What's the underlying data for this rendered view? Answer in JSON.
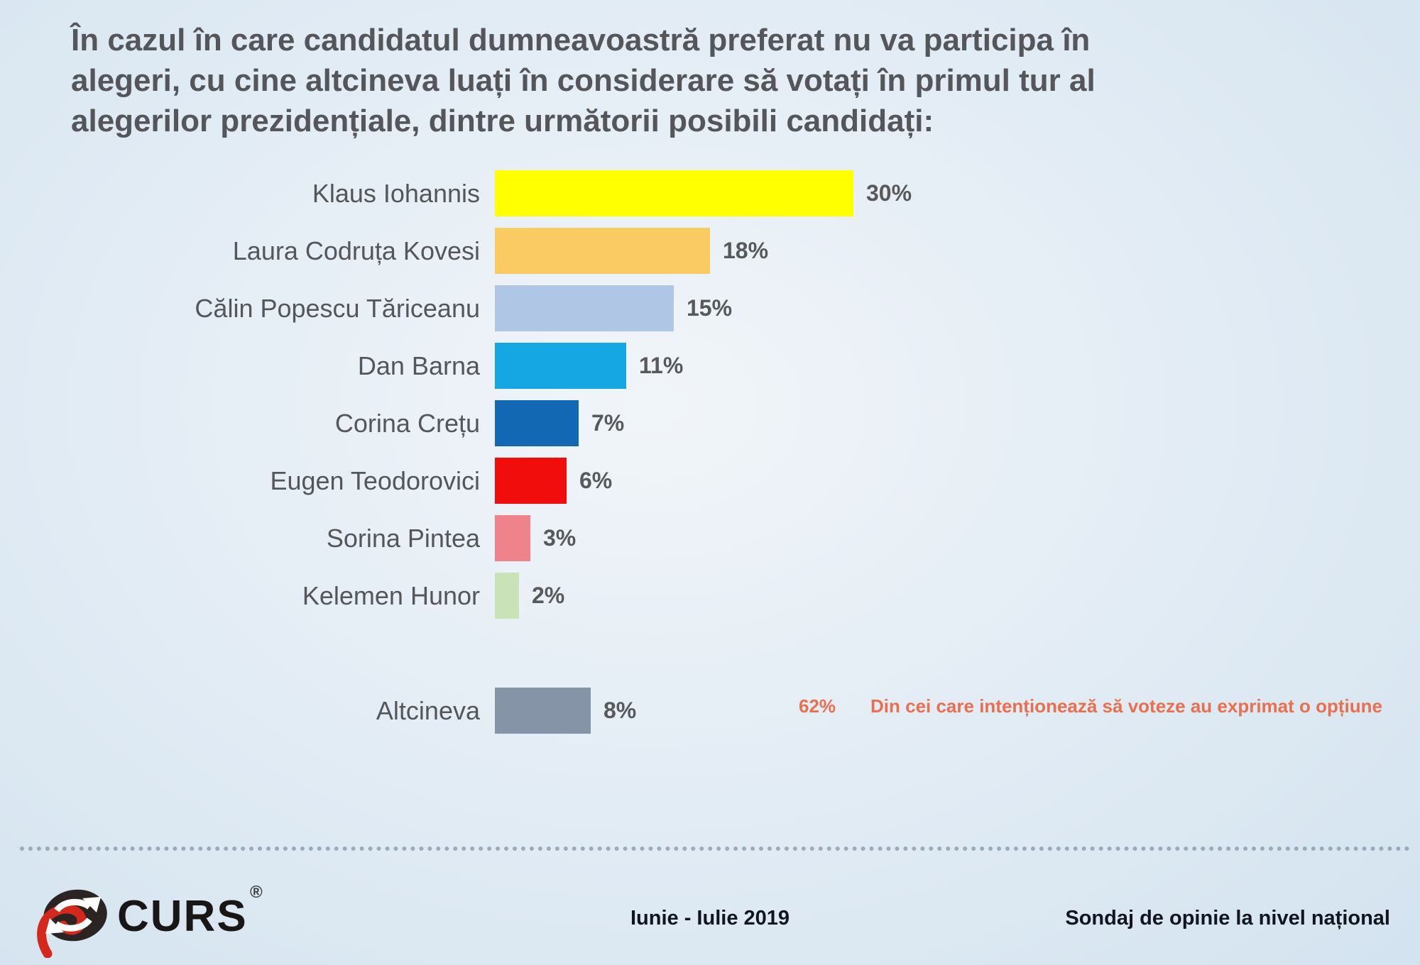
{
  "title": {
    "lines": [
      "În cazul în care candidatul dumneavoastră preferat nu va participa în",
      "alegeri, cu cine altcineva luați în considerare să votați în primul tur al",
      "alegerilor prezidențiale, dintre următorii posibili candidați:"
    ]
  },
  "chart_data": {
    "type": "bar",
    "orientation": "horizontal",
    "unit": "%",
    "xlim": [
      0,
      30
    ],
    "grid": false,
    "categories": [
      "Klaus Iohannis",
      "Laura Codruța Kovesi",
      "Călin Popescu Tăriceanu",
      "Dan Barna",
      "Corina Crețu",
      "Eugen Teodorovici",
      "Sorina Pintea",
      "Kelemen Hunor",
      "Altcineva"
    ],
    "values": [
      30,
      18,
      15,
      11,
      7,
      6,
      3,
      2,
      8
    ],
    "bars": [
      {
        "label": "Klaus Iohannis",
        "value": 30,
        "display": "30%",
        "color": "#FFFF00",
        "separate": false
      },
      {
        "label": "Laura Codruța Kovesi",
        "value": 18,
        "display": "18%",
        "color": "#FACB62",
        "separate": false
      },
      {
        "label": "Călin Popescu Tăriceanu",
        "value": 15,
        "display": "15%",
        "color": "#AFC7E4",
        "separate": false
      },
      {
        "label": "Dan Barna",
        "value": 11,
        "display": "11%",
        "color": "#14A7E3",
        "separate": false
      },
      {
        "label": "Corina Crețu",
        "value": 7,
        "display": "7%",
        "color": "#1268B3",
        "separate": false
      },
      {
        "label": "Eugen Teodorovici",
        "value": 6,
        "display": "6%",
        "color": "#F20D0D",
        "separate": false
      },
      {
        "label": "Sorina Pintea",
        "value": 3,
        "display": "3%",
        "color": "#F0828B",
        "separate": false
      },
      {
        "label": "Kelemen Hunor",
        "value": 2,
        "display": "2%",
        "color": "#C9E2B6",
        "separate": false
      },
      {
        "label": "Altcineva",
        "value": 8,
        "display": "8%",
        "color": "#8694A7",
        "separate": true
      }
    ]
  },
  "annotation": {
    "pct": "62%",
    "text": "Din cei care intenționează să voteze au exprimat o opțiune",
    "color": "#E8704F"
  },
  "footer": {
    "logo_text": "CURS",
    "registered": "®",
    "period": "Iunie - Iulie 2019",
    "note": "Sondaj de opinie la nivel național"
  },
  "colors": {
    "background_center": "#F1F5F9",
    "background_edge": "#D3E3EF",
    "title_text": "#55565A",
    "label_text": "#55565A",
    "value_text": "#58595B",
    "annotation": "#E8704F",
    "footer_text": "#121520",
    "divider_dots": "#8496A9",
    "logo_dark": "#2B2422",
    "logo_red": "#D5281D"
  }
}
